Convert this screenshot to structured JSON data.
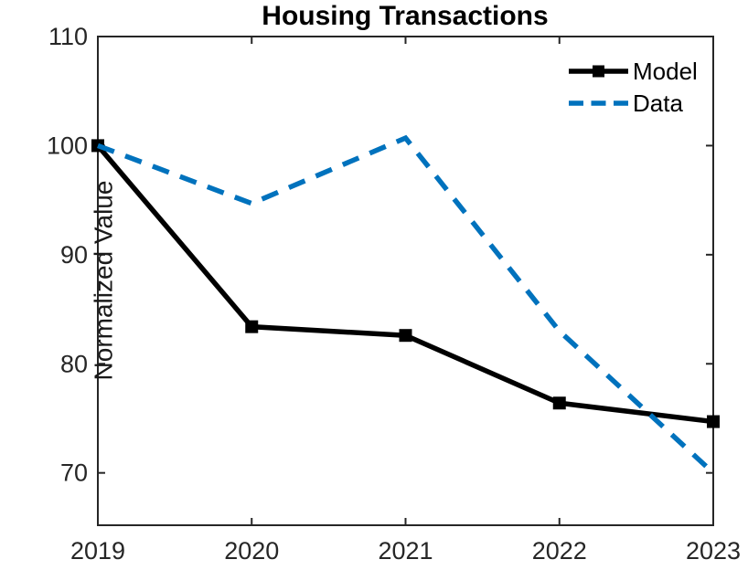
{
  "title": "Housing Transactions",
  "axes": {
    "ylabel": "Normalized Value",
    "x_ticks": [
      "2019",
      "2020",
      "2021",
      "2022",
      "2023"
    ],
    "y_ticks": [
      "70",
      "80",
      "90",
      "100",
      "110"
    ]
  },
  "legend": {
    "items": [
      {
        "label": "Model",
        "color": "#000000",
        "style": "solid-square-marker"
      },
      {
        "label": "Data",
        "color": "#0072BD",
        "style": "dashed"
      }
    ]
  },
  "chart_data": {
    "type": "line",
    "title": "Housing Transactions",
    "xlabel": "",
    "ylabel": "Normalized Value",
    "x": [
      2019,
      2020,
      2021,
      2022,
      2023
    ],
    "series": [
      {
        "name": "Model",
        "values": [
          100,
          83.4,
          82.6,
          76.4,
          74.7
        ],
        "color": "#000000",
        "line": "solid",
        "marker": "square"
      },
      {
        "name": "Data",
        "values": [
          100,
          94.7,
          100.7,
          83.0,
          70.0
        ],
        "color": "#0072BD",
        "line": "dashed",
        "marker": "none"
      }
    ],
    "xlim": [
      2019,
      2023
    ],
    "ylim": [
      65.2,
      110
    ],
    "x_tick_values": [
      2019,
      2020,
      2021,
      2022,
      2023
    ],
    "y_tick_values": [
      70,
      80,
      90,
      100,
      110
    ],
    "grid": false,
    "box": true,
    "tick_direction": "in",
    "legend_position": "top-right-inside",
    "axis_color": "#262626",
    "background_color": "#ffffff"
  }
}
